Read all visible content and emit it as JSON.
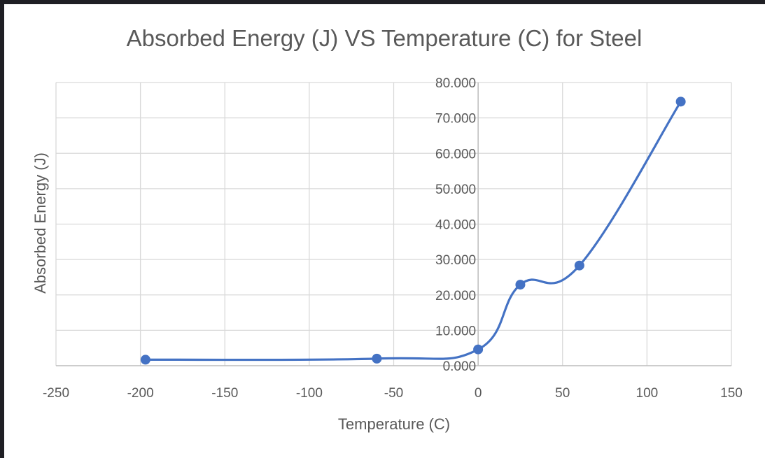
{
  "chart_data": {
    "type": "scatter",
    "title": "Absorbed Energy (J) VS Temperature (C) for Steel",
    "xlabel": "Temperature (C)",
    "ylabel": "Absorbed Energy (J)",
    "xlim": [
      -250,
      150
    ],
    "ylim": [
      0,
      80
    ],
    "x_ticks": [
      "-250",
      "-200",
      "-150",
      "-100",
      "-50",
      "0",
      "50",
      "100",
      "150"
    ],
    "y_ticks": [
      "0.000",
      "10.000",
      "20.000",
      "30.000",
      "40.000",
      "50.000",
      "60.000",
      "70.000",
      "80.000"
    ],
    "x_tick_values": [
      -250,
      -200,
      -150,
      -100,
      -50,
      0,
      50,
      100,
      150
    ],
    "y_tick_values": [
      0,
      10,
      20,
      30,
      40,
      50,
      60,
      70,
      80
    ],
    "line_style": "smooth",
    "markers": true,
    "grid": true,
    "legend": "none",
    "series": [
      {
        "color": "#4472C4",
        "x": [
          -197,
          -60,
          0,
          25,
          60,
          120
        ],
        "y": [
          1.7,
          2.0,
          4.6,
          22.9,
          28.3,
          74.6
        ]
      }
    ]
  }
}
